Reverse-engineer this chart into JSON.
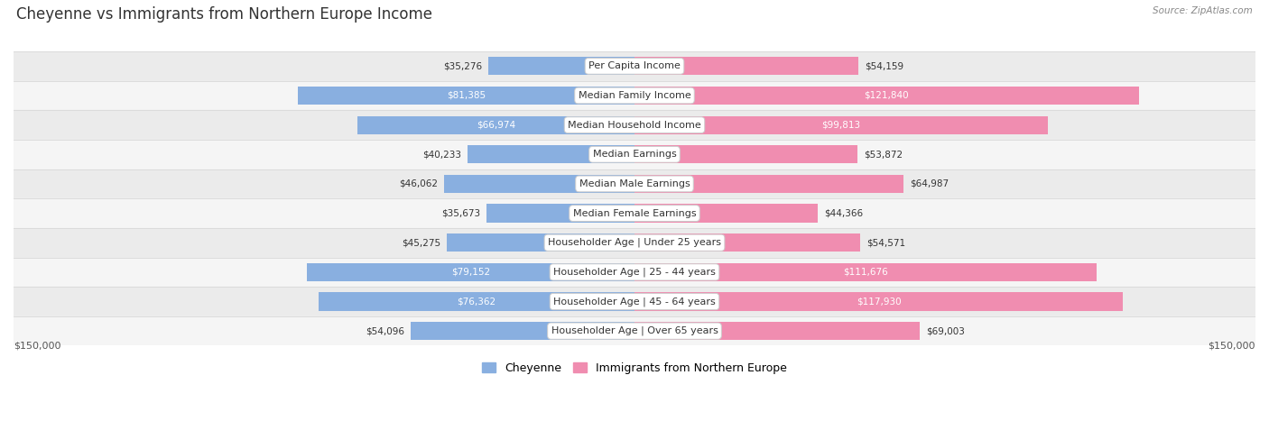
{
  "title": "Cheyenne vs Immigrants from Northern Europe Income",
  "source": "Source: ZipAtlas.com",
  "categories": [
    "Per Capita Income",
    "Median Family Income",
    "Median Household Income",
    "Median Earnings",
    "Median Male Earnings",
    "Median Female Earnings",
    "Householder Age | Under 25 years",
    "Householder Age | 25 - 44 years",
    "Householder Age | 45 - 64 years",
    "Householder Age | Over 65 years"
  ],
  "cheyenne_values": [
    35276,
    81385,
    66974,
    40233,
    46062,
    35673,
    45275,
    79152,
    76362,
    54096
  ],
  "immigrant_values": [
    54159,
    121840,
    99813,
    53872,
    64987,
    44366,
    54571,
    111676,
    117930,
    69003
  ],
  "cheyenne_color": "#89afe0",
  "immigrant_color": "#f08db0",
  "cheyenne_color_dark": "#5b8ec9",
  "immigrant_color_dark": "#e5608a",
  "row_colors": [
    "#ebebeb",
    "#f5f5f5"
  ],
  "max_value": 150000,
  "bar_height": 0.62,
  "legend_cheyenne": "Cheyenne",
  "legend_immigrant": "Immigrants from Northern Europe",
  "xlabel_left": "$150,000",
  "xlabel_right": "$150,000",
  "cheyenne_white_threshold": 60000,
  "immigrant_white_threshold": 85000
}
